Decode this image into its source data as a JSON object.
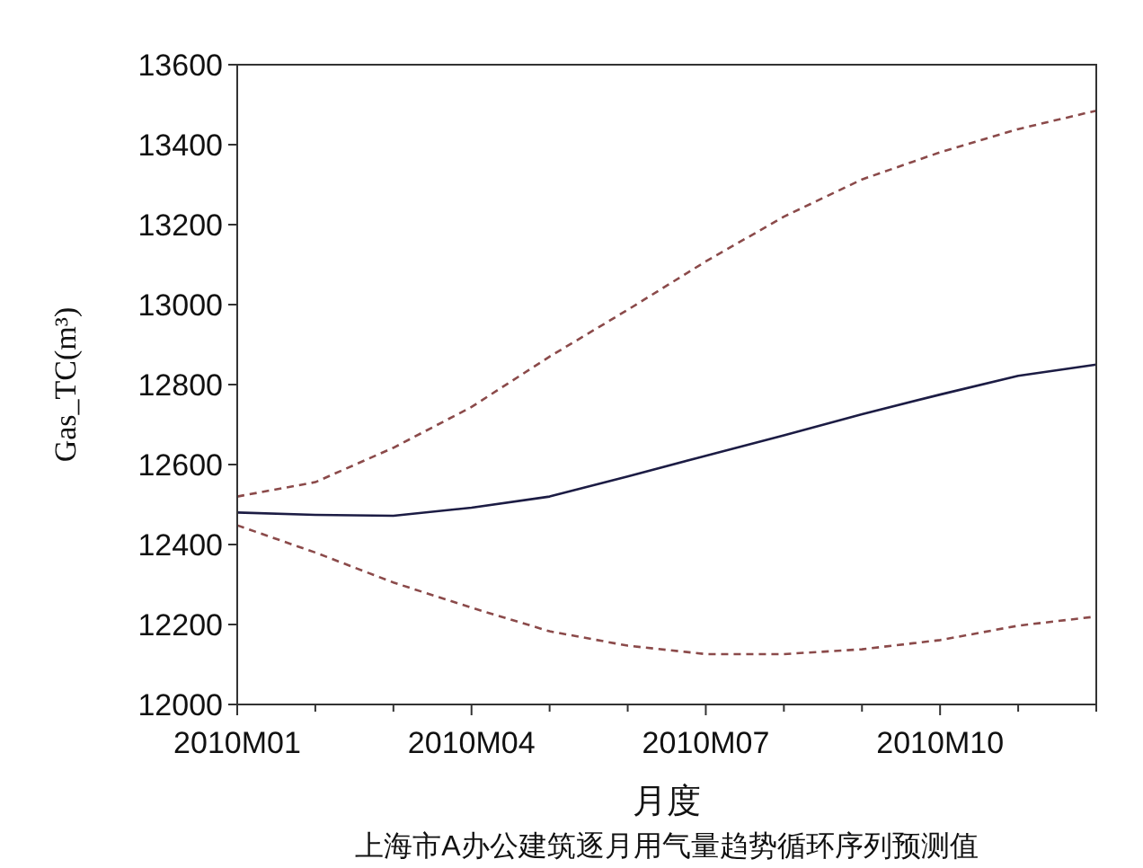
{
  "chart_data": {
    "type": "line",
    "categories": [
      "2010M01",
      null,
      null,
      "2010M04",
      null,
      null,
      "2010M07",
      null,
      null,
      "2010M10",
      null,
      null
    ],
    "xlabel": "月度",
    "ylabel": "Gas_TC(m³)",
    "ylim": [
      12000,
      13600
    ],
    "yticks": [
      12000,
      12200,
      12400,
      12600,
      12800,
      13000,
      13200,
      13400,
      13600
    ],
    "grid": false,
    "marker": "none",
    "series": [
      {
        "color": "#1c1c44",
        "line_style": "solid",
        "values": [
          12480,
          12474,
          12472,
          12492,
          12520,
          12570,
          12622,
          12673,
          12726,
          12775,
          12822,
          12850
        ]
      },
      {
        "color": "#8b4a4a",
        "line_style": "dashed",
        "values": [
          12520,
          12556,
          12642,
          12744,
          12870,
          12987,
          13108,
          13220,
          13313,
          13381,
          13439,
          13485
        ]
      },
      {
        "color": "#8b4a4a",
        "line_style": "dashed",
        "values": [
          12448,
          12380,
          12305,
          12242,
          12183,
          12147,
          12126,
          12126,
          12138,
          12161,
          12197,
          12220
        ]
      }
    ],
    "annotations": [
      "上海市A办公建筑逐月用气量趋势循环序列预测值"
    ]
  }
}
